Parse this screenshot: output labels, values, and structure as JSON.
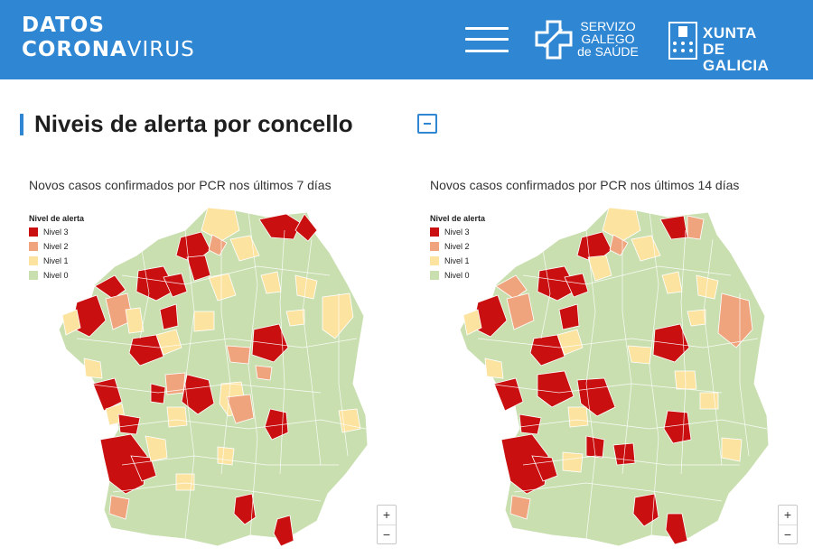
{
  "header": {
    "logo_line1": "DATOS",
    "logo_line2_bold": "CORONA",
    "logo_line2_light": "VIRUS",
    "sgs_line1": "SERVIZO",
    "sgs_line2": "GALEGO",
    "sgs_line3": "de SAÚDE",
    "xunta_line1": "XUNTA",
    "xunta_line2": "DE GALICIA",
    "bar_color": "#2f86d2"
  },
  "section": {
    "title": "Niveis de alerta por concello"
  },
  "legend": {
    "title": "Nivel de alerta",
    "items": [
      {
        "label": "Nivel 3",
        "color": "#c90f0f"
      },
      {
        "label": "Nivel 2",
        "color": "#f0a47e"
      },
      {
        "label": "Nivel 1",
        "color": "#fde3a0"
      },
      {
        "label": "Nivel 0",
        "color": "#c9dfb0"
      }
    ]
  },
  "maps": [
    {
      "title": "Novos casos confirmados por PCR nos últimos 7 días"
    },
    {
      "title": "Novos casos confirmados por PCR nos últimos 14 días"
    }
  ],
  "zoom": {
    "in": "+",
    "out": "−"
  }
}
